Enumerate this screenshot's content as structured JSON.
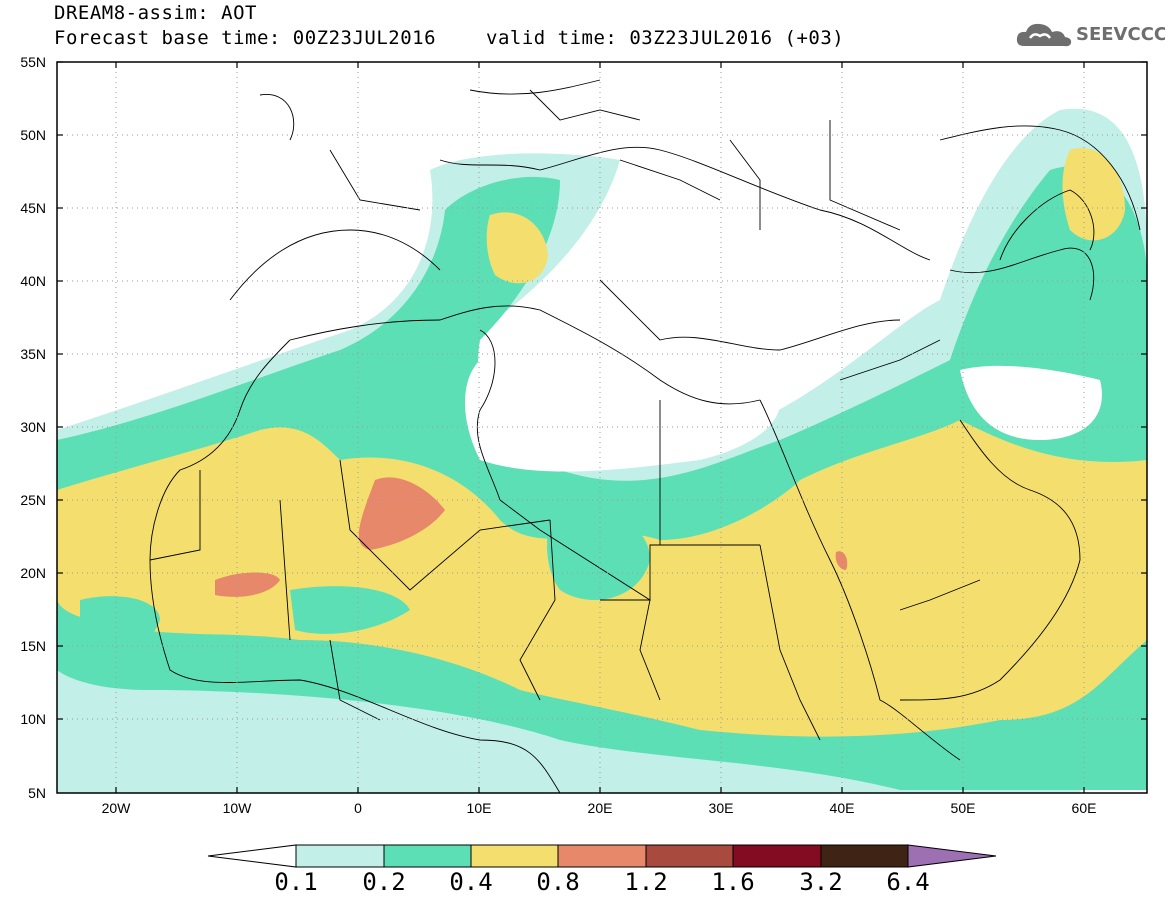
{
  "header": {
    "title_line1": "DREAM8-assim: AOT",
    "base_time": "Forecast base time: 00Z23JUL2016",
    "valid_time": "valid time: 03Z23JUL2016 (+03)"
  },
  "logo": {
    "text": "SEEVCCC",
    "icon": "cloud-icon"
  },
  "axes": {
    "lat_labels": [
      "55N",
      "50N",
      "45N",
      "40N",
      "35N",
      "30N",
      "25N",
      "20N",
      "15N",
      "10N",
      "5N"
    ],
    "lon_labels": [
      "20W",
      "10W",
      "0",
      "10E",
      "20E",
      "30E",
      "40E",
      "50E",
      "60E"
    ]
  },
  "colorbar": {
    "colors": [
      "#c2efe8",
      "#5ddfb6",
      "#f4df6e",
      "#e8886a",
      "#a84a3e",
      "#840c22",
      "#3f2416"
    ],
    "triangle_left": "#ffffff",
    "triangle_right": "#9d70b4",
    "labels": [
      "0.1",
      "0.2",
      "0.4",
      "0.8",
      "1.2",
      "1.6",
      "3.2",
      "6.4"
    ]
  }
}
